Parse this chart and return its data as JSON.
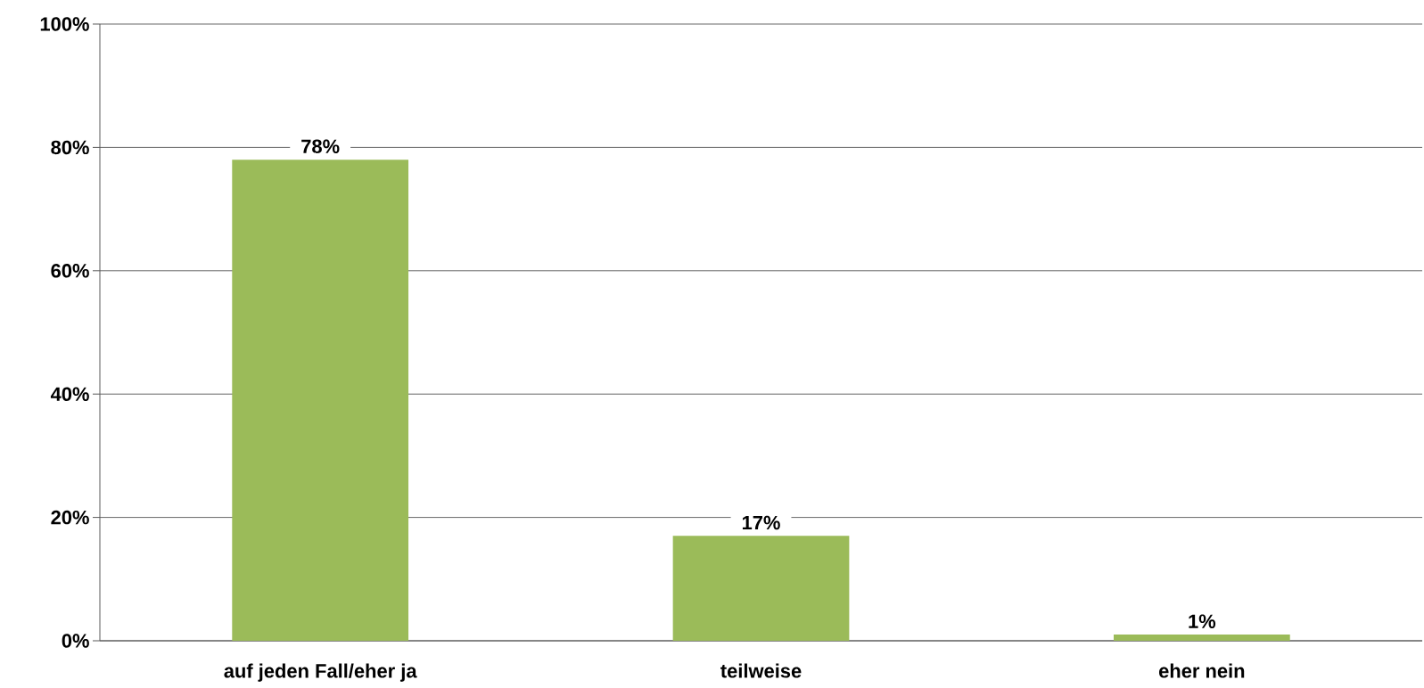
{
  "chart_data": {
    "type": "bar",
    "categories": [
      "auf jeden Fall/eher ja",
      "teilweise",
      "eher nein"
    ],
    "values": [
      78,
      17,
      1
    ],
    "value_labels": [
      "78%",
      "17%",
      "1%"
    ],
    "color": "#9bbb59",
    "ylim": [
      0,
      100
    ],
    "yticks": [
      {
        "value": 0,
        "label": "0%"
      },
      {
        "value": 20,
        "label": "20%"
      },
      {
        "value": 40,
        "label": "40%"
      },
      {
        "value": 60,
        "label": "60%"
      },
      {
        "value": 80,
        "label": "80%"
      },
      {
        "value": 100,
        "label": "100%"
      }
    ],
    "grid": "y"
  }
}
